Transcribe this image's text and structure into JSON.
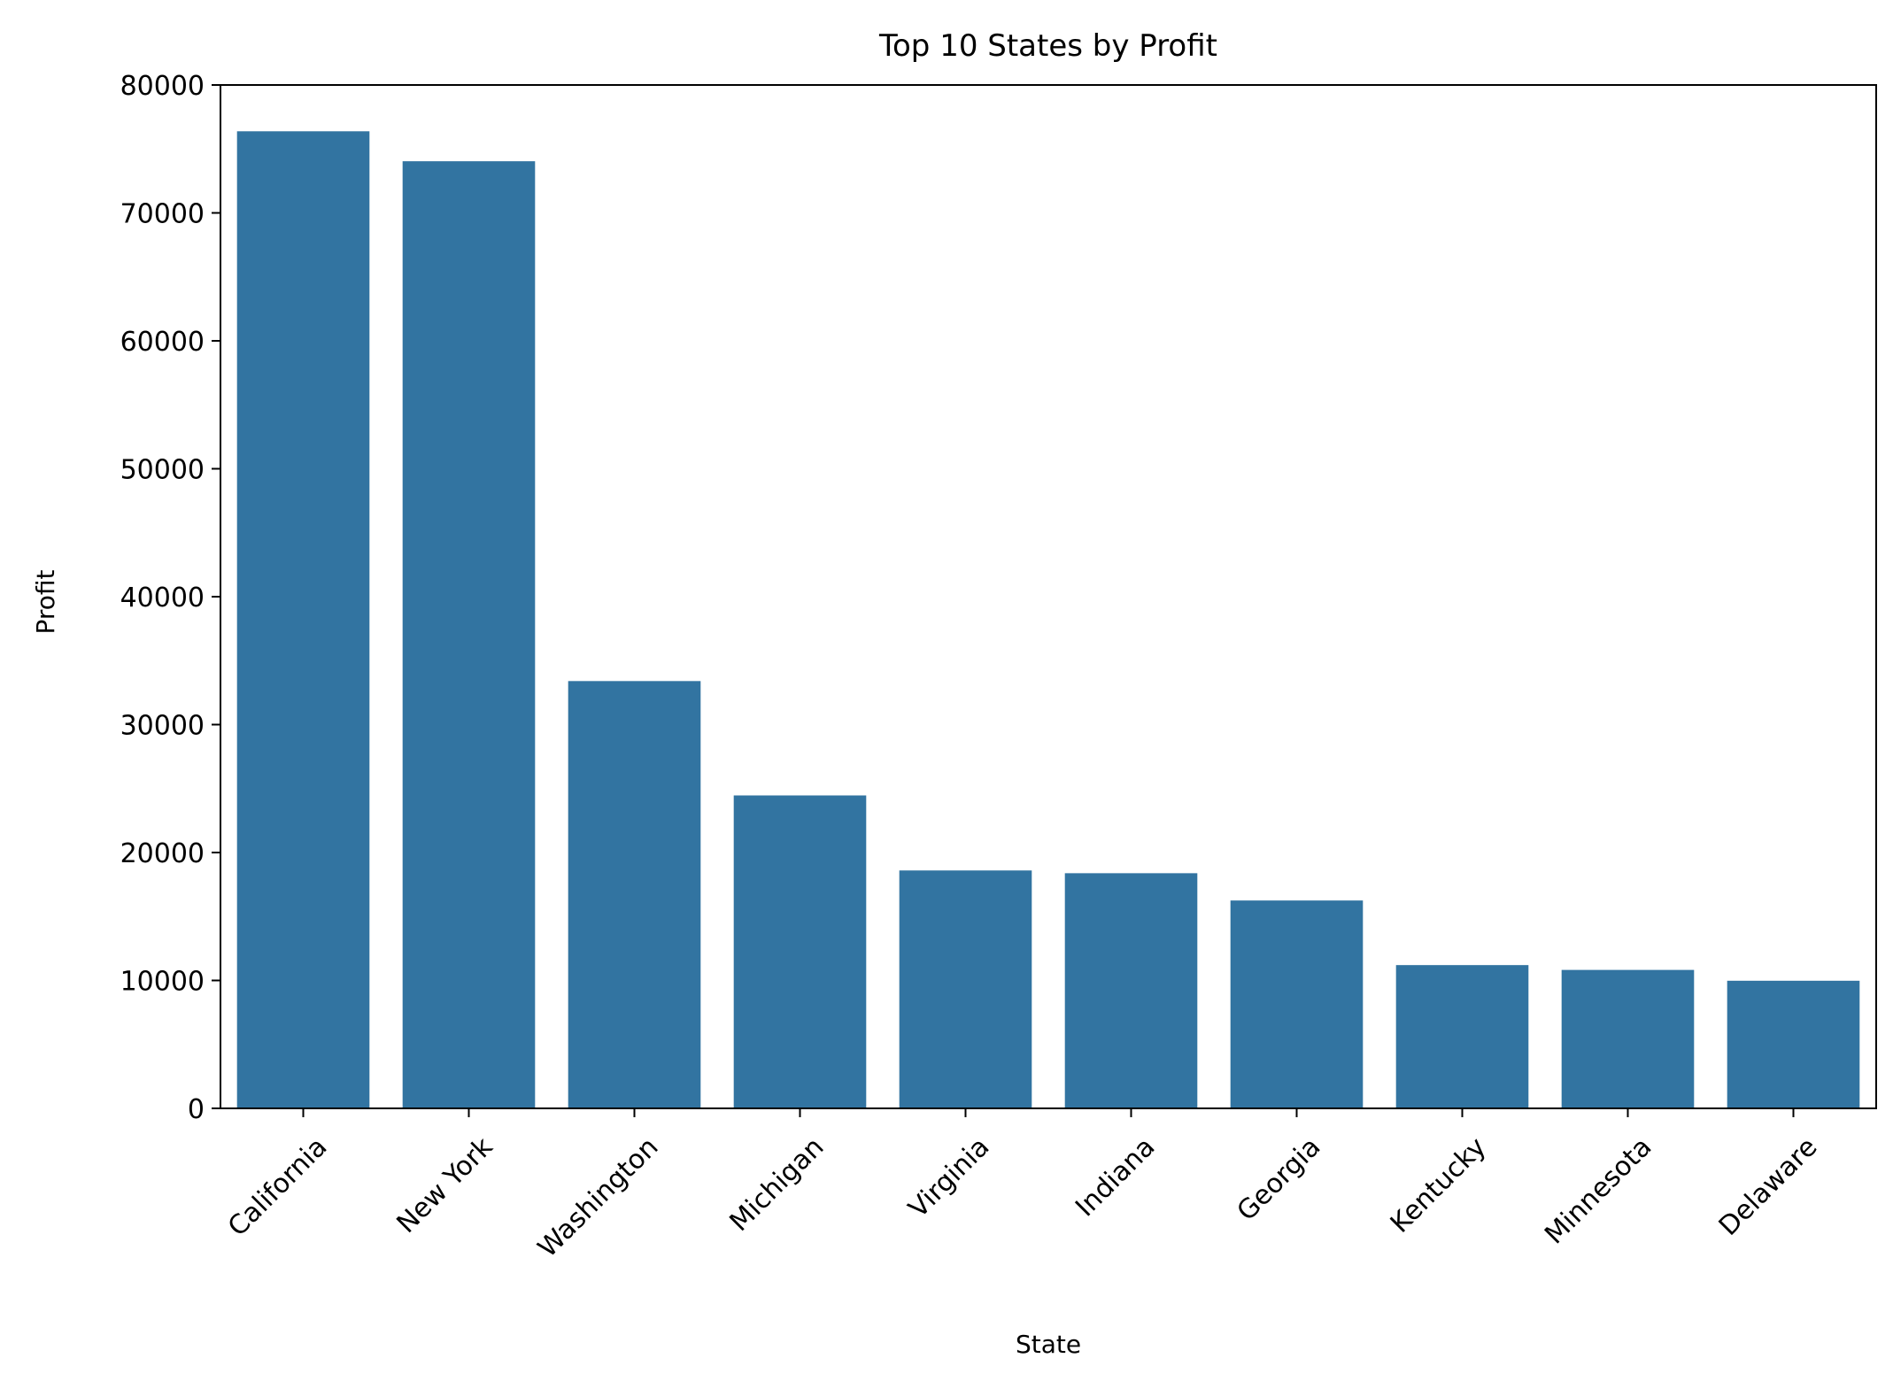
{
  "chart_data": {
    "type": "bar",
    "title": "Top 10 States by Profit",
    "xlabel": "State",
    "ylabel": "Profit",
    "categories": [
      "California",
      "New York",
      "Washington",
      "Michigan",
      "Virginia",
      "Indiana",
      "Georgia",
      "Kentucky",
      "Minnesota",
      "Delaware"
    ],
    "values": [
      76381,
      74039,
      33403,
      24463,
      18598,
      18383,
      16250,
      11200,
      10823,
      9977
    ],
    "ylim": [
      0,
      80000
    ],
    "yticks": [
      0,
      10000,
      20000,
      30000,
      40000,
      50000,
      60000,
      70000,
      80000
    ],
    "ytick_labels": [
      "0",
      "10000",
      "20000",
      "30000",
      "40000",
      "50000",
      "60000",
      "70000",
      "80000"
    ],
    "bar_color": "#3274a1",
    "grid": false,
    "legend": "none"
  }
}
